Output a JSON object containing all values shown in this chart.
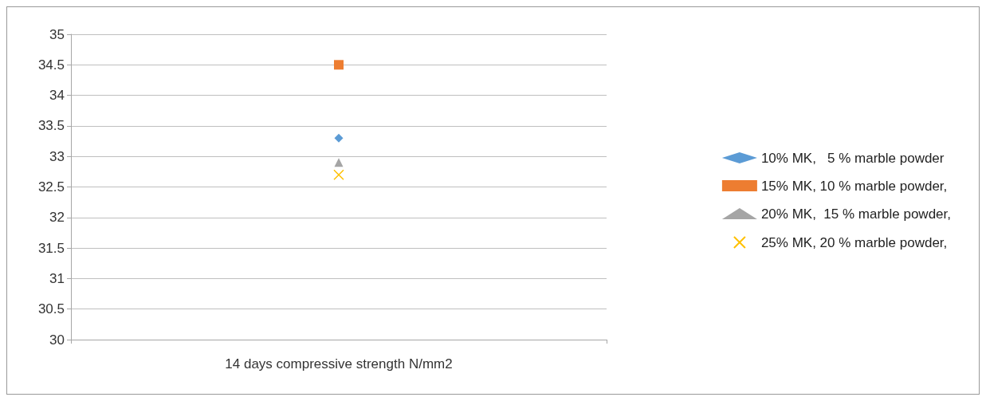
{
  "chart_data": {
    "type": "line",
    "categories": [
      "14 days compressive strength N/mm2"
    ],
    "series": [
      {
        "name": "10% MK,   5 % marble powder",
        "color": "#5b9bd5",
        "values": [
          33.3
        ],
        "marker": "diamond"
      },
      {
        "name": "15% MK, 10 % marble powder,",
        "color": "#ed7d31",
        "values": [
          34.5
        ],
        "marker": "square"
      },
      {
        "name": "20% MK,  15 % marble powder,",
        "color": "#a5a5a5",
        "values": [
          32.9
        ],
        "marker": "triangle"
      },
      {
        "name": "25% MK, 20 % marble powder,",
        "color": "#ffc000",
        "values": [
          32.7
        ],
        "marker": "cross"
      }
    ],
    "ylim": [
      30,
      35
    ],
    "yticks": [
      30,
      30.5,
      31,
      31.5,
      32,
      32.5,
      33,
      33.5,
      34,
      34.5,
      35
    ],
    "grid": "y",
    "legend": "right"
  }
}
